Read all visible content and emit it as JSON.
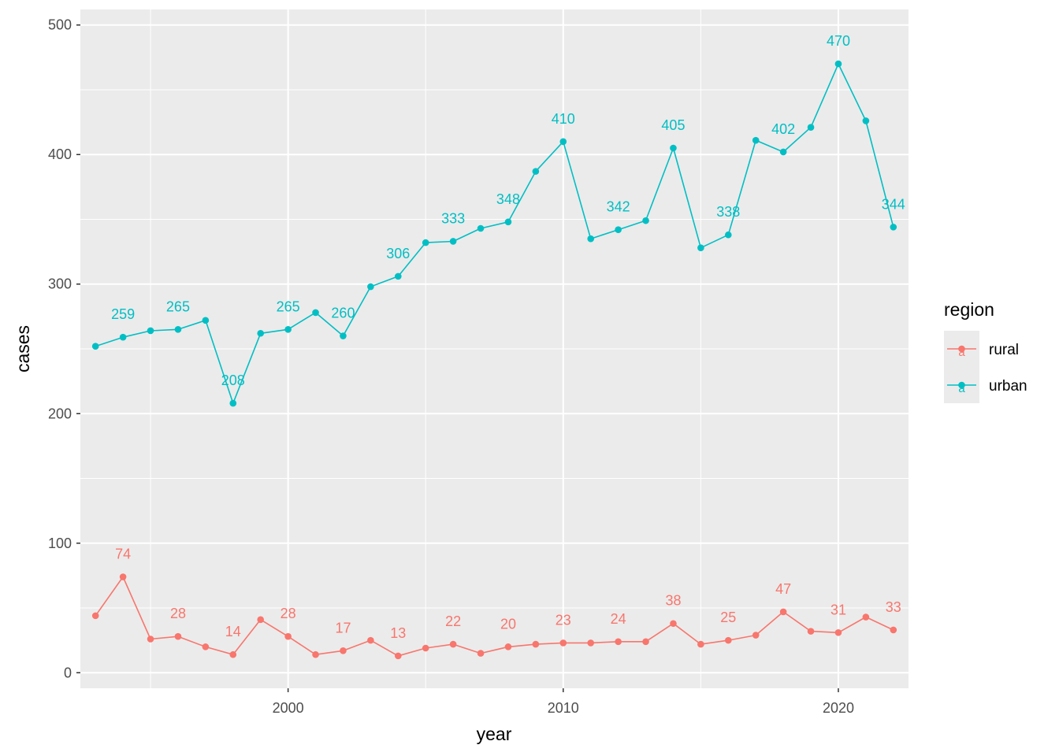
{
  "chart_data": {
    "type": "line",
    "title": "",
    "xlabel": "year",
    "ylabel": "cases",
    "xlim": [
      1992.45,
      2022.55
    ],
    "ylim": [
      -12,
      512
    ],
    "x_ticks": [
      2000,
      2010,
      2020
    ],
    "y_ticks": [
      0,
      100,
      200,
      300,
      400,
      500
    ],
    "grid": true,
    "legend": {
      "title": "region",
      "position": "right",
      "entries": [
        {
          "label": "rural",
          "key_glyph": "a"
        },
        {
          "label": "urban",
          "key_glyph": "a"
        }
      ]
    },
    "x": [
      1993,
      1994,
      1995,
      1996,
      1997,
      1998,
      1999,
      2000,
      2001,
      2002,
      2003,
      2004,
      2005,
      2006,
      2007,
      2008,
      2009,
      2010,
      2011,
      2012,
      2013,
      2014,
      2015,
      2016,
      2017,
      2018,
      2019,
      2020,
      2021,
      2022
    ],
    "series": [
      {
        "name": "rural",
        "color": "#F8766D",
        "values": [
          44,
          74,
          26,
          28,
          20,
          14,
          41,
          28,
          14,
          17,
          25,
          13,
          19,
          22,
          15,
          20,
          22,
          23,
          23,
          24,
          24,
          38,
          22,
          25,
          29,
          47,
          32,
          31,
          43,
          33
        ],
        "labels": [
          {
            "x": 1994,
            "y": 74,
            "text": "74"
          },
          {
            "x": 1996,
            "y": 28,
            "text": "28"
          },
          {
            "x": 1998,
            "y": 14,
            "text": "14"
          },
          {
            "x": 2000,
            "y": 28,
            "text": "28"
          },
          {
            "x": 2002,
            "y": 17,
            "text": "17"
          },
          {
            "x": 2004,
            "y": 13,
            "text": "13"
          },
          {
            "x": 2006,
            "y": 22,
            "text": "22"
          },
          {
            "x": 2008,
            "y": 20,
            "text": "20"
          },
          {
            "x": 2010,
            "y": 23,
            "text": "23"
          },
          {
            "x": 2012,
            "y": 24,
            "text": "24"
          },
          {
            "x": 2014,
            "y": 38,
            "text": "38"
          },
          {
            "x": 2016,
            "y": 25,
            "text": "25"
          },
          {
            "x": 2018,
            "y": 47,
            "text": "47"
          },
          {
            "x": 2020,
            "y": 31,
            "text": "31"
          },
          {
            "x": 2022,
            "y": 33,
            "text": "33"
          }
        ]
      },
      {
        "name": "urban",
        "color": "#00BFC4",
        "values": [
          252,
          259,
          264,
          265,
          272,
          208,
          262,
          265,
          278,
          260,
          298,
          306,
          332,
          333,
          343,
          348,
          387,
          410,
          335,
          342,
          349,
          405,
          328,
          338,
          411,
          402,
          421,
          470,
          426,
          344
        ],
        "labels": [
          {
            "x": 1994,
            "y": 259,
            "text": "259"
          },
          {
            "x": 1996,
            "y": 265,
            "text": "265"
          },
          {
            "x": 1998,
            "y": 208,
            "text": "208"
          },
          {
            "x": 2000,
            "y": 265,
            "text": "265"
          },
          {
            "x": 2002,
            "y": 260,
            "text": "260"
          },
          {
            "x": 2004,
            "y": 306,
            "text": "306"
          },
          {
            "x": 2006,
            "y": 333,
            "text": "333"
          },
          {
            "x": 2008,
            "y": 348,
            "text": "348"
          },
          {
            "x": 2010,
            "y": 410,
            "text": "410"
          },
          {
            "x": 2012,
            "y": 342,
            "text": "342"
          },
          {
            "x": 2014,
            "y": 405,
            "text": "405"
          },
          {
            "x": 2016,
            "y": 338,
            "text": "338"
          },
          {
            "x": 2018,
            "y": 402,
            "text": "402"
          },
          {
            "x": 2020,
            "y": 470,
            "text": "470"
          },
          {
            "x": 2022,
            "y": 344,
            "text": "344"
          }
        ]
      }
    ]
  }
}
